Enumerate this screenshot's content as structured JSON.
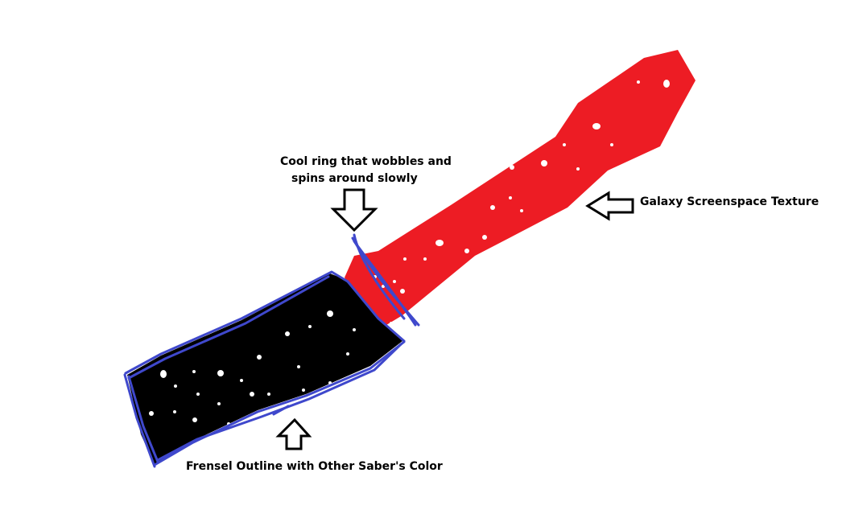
{
  "annotations": {
    "ring_line1": "Cool ring that wobbles and",
    "ring_line2": "spins around slowly",
    "galaxy": "Galaxy Screenspace Texture",
    "fresnel": "Frensel Outline with Other Saber's Color"
  },
  "colors": {
    "blade": "#ed1c24",
    "hilt": "#000000",
    "outline": "#3f48cc",
    "stars": "#ffffff",
    "arrow_stroke": "#000000",
    "arrow_fill": "#ffffff"
  },
  "icons": [
    "down-arrow-icon",
    "left-arrow-icon",
    "up-arrow-icon"
  ]
}
